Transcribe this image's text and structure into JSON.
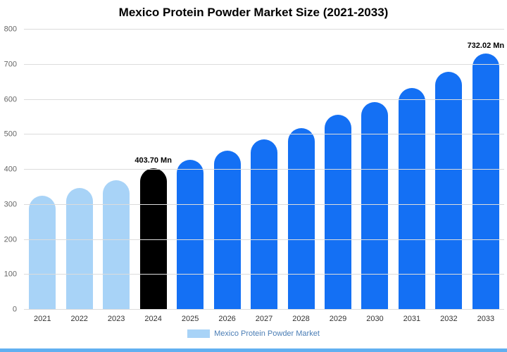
{
  "chart_data": {
    "type": "bar",
    "title": "Mexico Protein Powder Market Size (2021-2033)",
    "categories": [
      "2021",
      "2022",
      "2023",
      "2024",
      "2025",
      "2026",
      "2027",
      "2028",
      "2029",
      "2030",
      "2031",
      "2032",
      "2033"
    ],
    "values": [
      325,
      347,
      370,
      403.7,
      428,
      455,
      487,
      519,
      556,
      594,
      634,
      679,
      732.02
    ],
    "unit": "Mn",
    "xlabel": "",
    "ylabel": "",
    "ylim": [
      0,
      800
    ],
    "yticks": [
      0,
      100,
      200,
      300,
      400,
      500,
      600,
      700,
      800
    ],
    "grid": true,
    "legend_position": "bottom",
    "bar_colors": [
      "#a8d3f7",
      "#a8d3f7",
      "#a8d3f7",
      "#000000",
      "#1470f4",
      "#1470f4",
      "#1470f4",
      "#1470f4",
      "#1470f4",
      "#1470f4",
      "#1470f4",
      "#1470f4",
      "#1470f4"
    ],
    "annotations": [
      {
        "index": 3,
        "text": "403.70 Mn"
      },
      {
        "index": 12,
        "text": "732.02 Mn"
      }
    ]
  },
  "legend": {
    "label": "Mexico Protein Powder Market",
    "swatch_color": "#a8d3f7"
  },
  "footer": {
    "strip_color": "#61b0f1"
  },
  "colors": {
    "light_blue_bar": "#a8d3f7",
    "highlight_bar": "#000000",
    "blue_bar": "#1470f4",
    "gridline": "#dcdcdc"
  }
}
